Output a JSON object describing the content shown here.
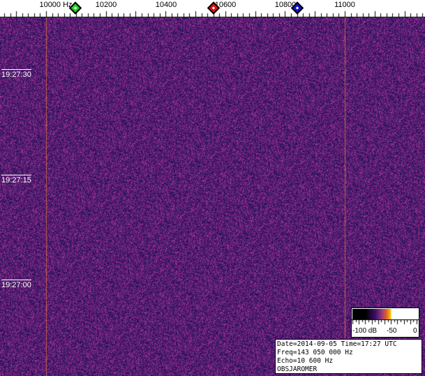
{
  "frequency_axis": {
    "unit": "Hz",
    "labels": [
      "10000 Hz",
      "10200",
      "10400",
      "10600",
      "10800",
      "11000"
    ],
    "values": [
      10000,
      10200,
      10400,
      10600,
      10800,
      11000
    ]
  },
  "markers": [
    {
      "name": "green-marker",
      "freq_hz": 10098,
      "color": "#22cc22"
    },
    {
      "name": "red-marker",
      "freq_hz": 10561,
      "color": "#dd1111"
    },
    {
      "name": "blue-marker",
      "freq_hz": 10841,
      "color": "#1111cc"
    }
  ],
  "signal_lines_hz": [
    10000,
    11000
  ],
  "time_axis": {
    "labels": [
      "19:27:30",
      "19:27:15",
      "19:27:00"
    ]
  },
  "color_bar": {
    "labels": [
      "-100 dB",
      "-50",
      "0"
    ]
  },
  "info": {
    "line1": "Date=2014-09-05 Time=17:27 UTC",
    "line2": "Freq=143 050 000 Hz",
    "line3": "Echo=10 600 Hz",
    "line4": "OBSJAROMER"
  },
  "colors": {
    "background": "#2a1a6a",
    "noise_hot": "#a03a8a",
    "line": "#e07040"
  }
}
